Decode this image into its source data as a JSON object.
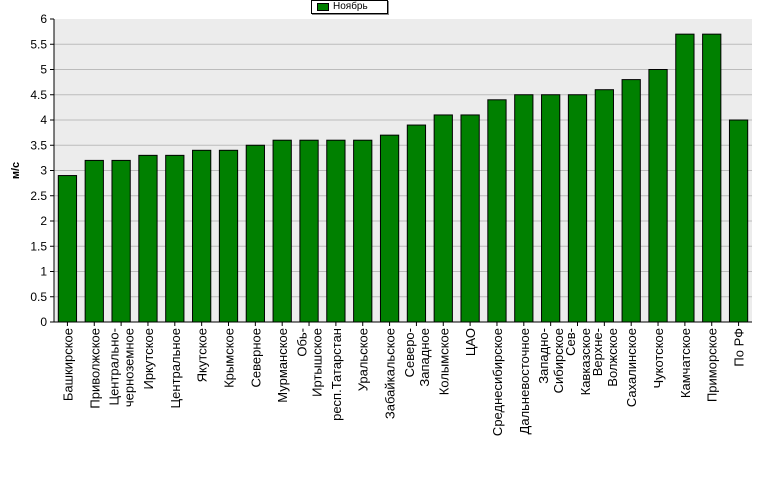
{
  "chart_data": {
    "type": "bar",
    "title": "",
    "xlabel": "",
    "ylabel": "м/с",
    "ylim": [
      0,
      6
    ],
    "ytick_step": 0.5,
    "grid": "horizontal",
    "legend_position": "top-center",
    "colors": {
      "bar": "#008000",
      "bar_border": "#000000",
      "plot_background": "#ececec",
      "grid": "#bbbbbb"
    },
    "categories": [
      "Башкирское",
      "Приволжское",
      "Центрально-черноземное",
      "Иркутское",
      "Центральное",
      "Якутское",
      "Крымское",
      "Северное",
      "Мурманское",
      "Обь-Иртышское",
      "респ.Татарстан",
      "Уральское",
      "Забайкальское",
      "Северо-Западное",
      "Колымское",
      "ЦАО",
      "Среднесибирское",
      "Дальневосточное",
      "Западно-Сибирское",
      "Сев-Кавказское",
      "Верхне-Волжское",
      "Сахалинское",
      "Чукотское",
      "Камчатское",
      "Приморское",
      "По РФ"
    ],
    "tick_lines": [
      [
        "Башкирское"
      ],
      [
        "Приволжское"
      ],
      [
        "Центрально-",
        "черноземное"
      ],
      [
        "Иркутское"
      ],
      [
        "Центральное"
      ],
      [
        "Якутское"
      ],
      [
        "Крымское"
      ],
      [
        "Северное"
      ],
      [
        "Мурманское"
      ],
      [
        "Обь-",
        "Иртышское"
      ],
      [
        "респ.Татарстан"
      ],
      [
        "Уральское"
      ],
      [
        "Забайкальское"
      ],
      [
        "Северо-",
        "Западное"
      ],
      [
        "Колымское"
      ],
      [
        "ЦАО"
      ],
      [
        "Среднесибирское"
      ],
      [
        "Дальневосточное"
      ],
      [
        "Западно-",
        "Сибирское"
      ],
      [
        "Сев-",
        "Кавказское"
      ],
      [
        "Верхне-",
        "Волжское"
      ],
      [
        "Сахалинское"
      ],
      [
        "Чукотское"
      ],
      [
        "Камчатское"
      ],
      [
        "Приморское"
      ],
      [
        "По РФ"
      ]
    ],
    "series": [
      {
        "name": "Ноябрь",
        "values": [
          2.9,
          3.2,
          3.2,
          3.3,
          3.3,
          3.4,
          3.4,
          3.5,
          3.6,
          3.6,
          3.6,
          3.6,
          3.7,
          3.9,
          4.1,
          4.1,
          4.4,
          4.5,
          4.5,
          4.5,
          4.6,
          4.8,
          5.0,
          5.7,
          5.7,
          4.0
        ]
      }
    ]
  }
}
